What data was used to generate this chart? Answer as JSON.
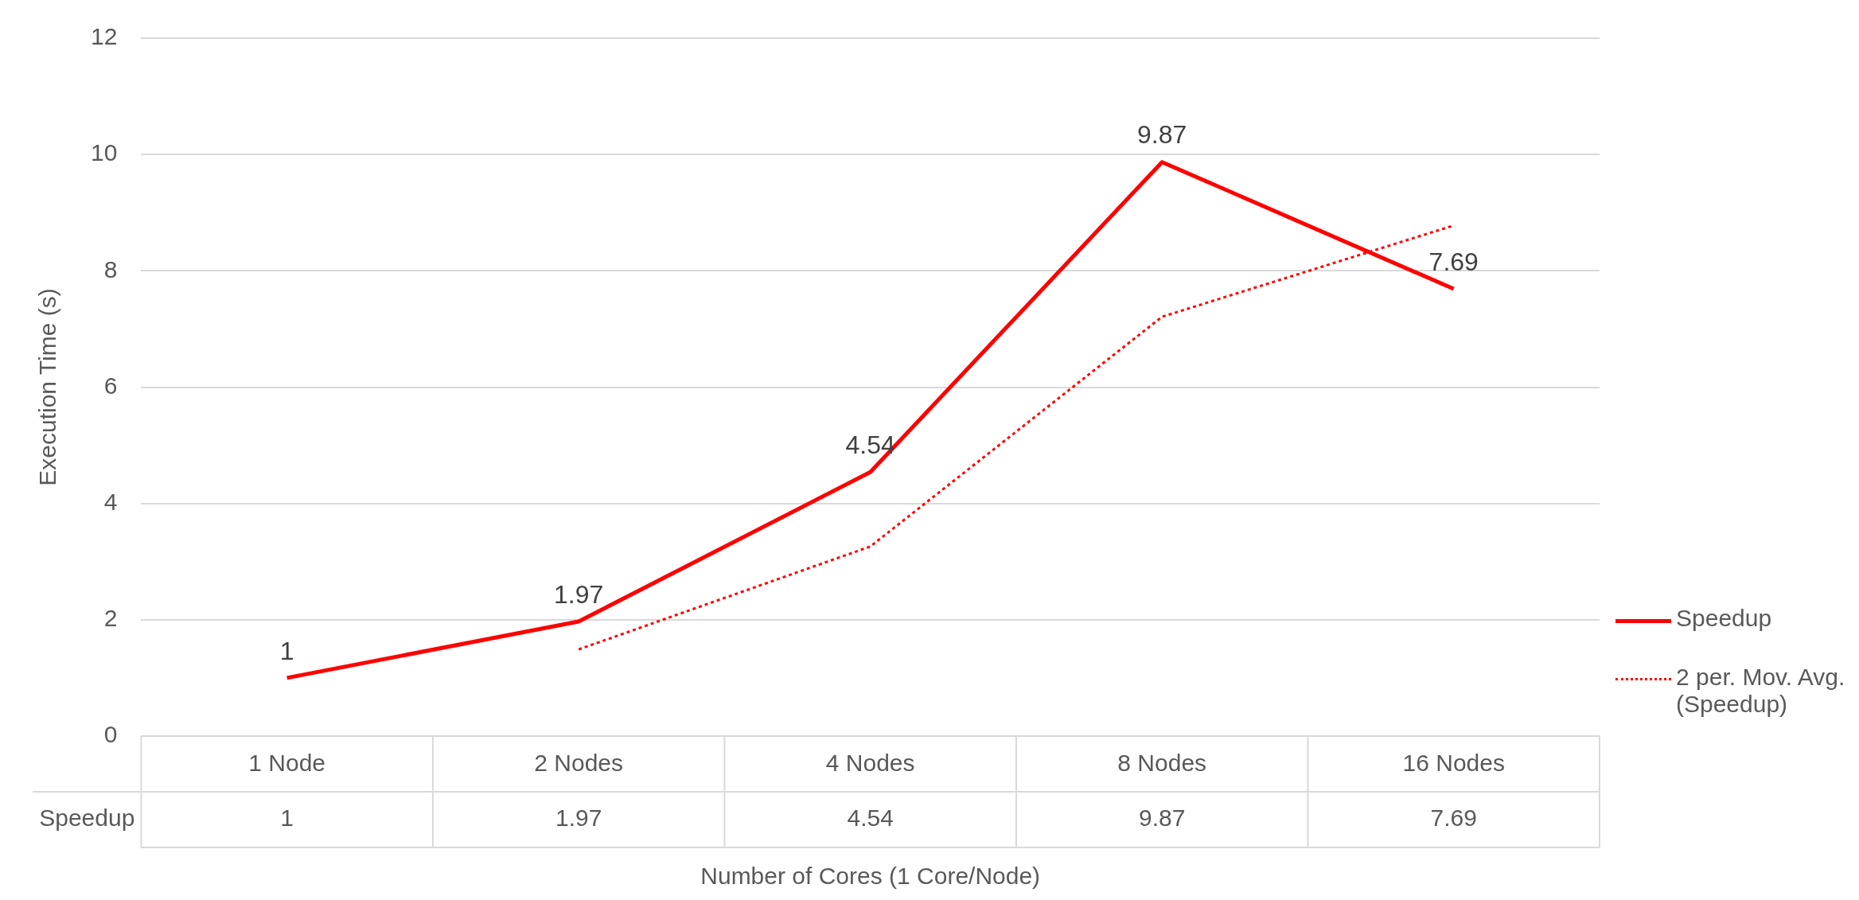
{
  "chart_data": {
    "type": "line",
    "xlabel": "Number of Cores (1 Core/Node)",
    "ylabel": "Execution Time (s)",
    "categories": [
      "1 Node",
      "2 Nodes",
      "4 Nodes",
      "8 Nodes",
      "16 Nodes"
    ],
    "series": [
      {
        "name": "Speedup",
        "color": "#ff0000",
        "values": [
          1,
          1.97,
          4.54,
          9.87,
          7.69
        ],
        "value_labels": [
          "1",
          "1.97",
          "4.54",
          "9.87",
          "7.69"
        ],
        "line_style": "solid"
      },
      {
        "name": "2 per. Mov. Avg. (Speedup)",
        "color": "#ff0000",
        "values": [
          null,
          1.49,
          3.26,
          7.21,
          8.78
        ],
        "line_style": "dotted"
      }
    ],
    "ylim": [
      0,
      12
    ],
    "yticks": [
      0,
      2,
      4,
      6,
      8,
      10,
      12
    ],
    "grid": "y",
    "legend": "right",
    "marker": "none"
  }
}
